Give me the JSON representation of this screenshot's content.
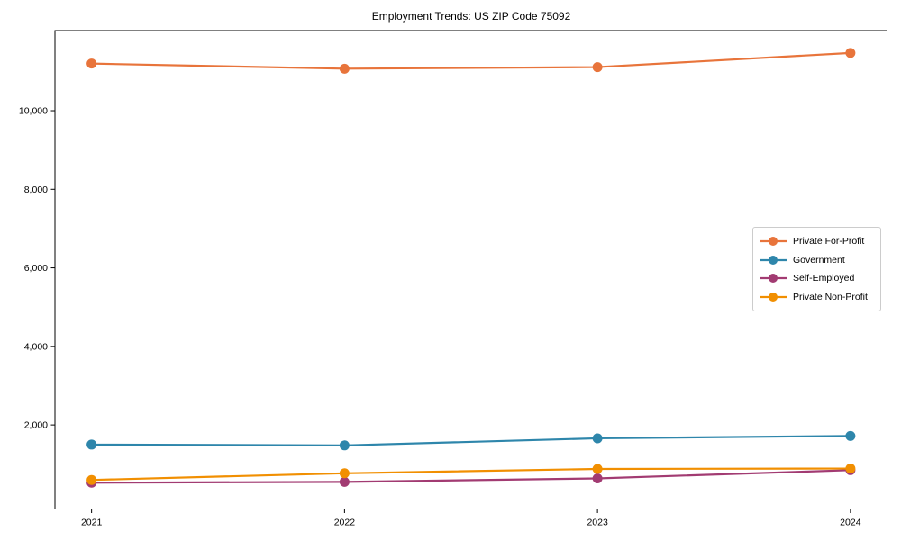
{
  "chart_data": {
    "type": "line",
    "title": "Employment Trends: US ZIP Code 75092",
    "x": [
      "2021",
      "2022",
      "2023",
      "2024"
    ],
    "series": [
      {
        "name": "Private For-Profit",
        "color": "#E8743B",
        "values": [
          11200,
          11070,
          11110,
          11470
        ]
      },
      {
        "name": "Government",
        "color": "#2E86AB",
        "values": [
          1500,
          1480,
          1660,
          1720
        ]
      },
      {
        "name": "Self-Employed",
        "color": "#A23B72",
        "values": [
          530,
          550,
          640,
          850
        ]
      },
      {
        "name": "Private Non-Profit",
        "color": "#F18F01",
        "values": [
          600,
          770,
          880,
          890
        ]
      }
    ],
    "xlabel": "",
    "ylabel": "",
    "ylim": [
      -140,
      12040
    ],
    "yticks": [
      2000,
      4000,
      6000,
      8000,
      10000
    ],
    "ytick_labels": [
      "2,000",
      "4,000",
      "6,000",
      "8,000",
      "10,000"
    ],
    "xtick_labels": [
      "2021",
      "2022",
      "2023",
      "2024"
    ],
    "legend_position": "center right",
    "grid": false,
    "axis_color": "#000000"
  }
}
